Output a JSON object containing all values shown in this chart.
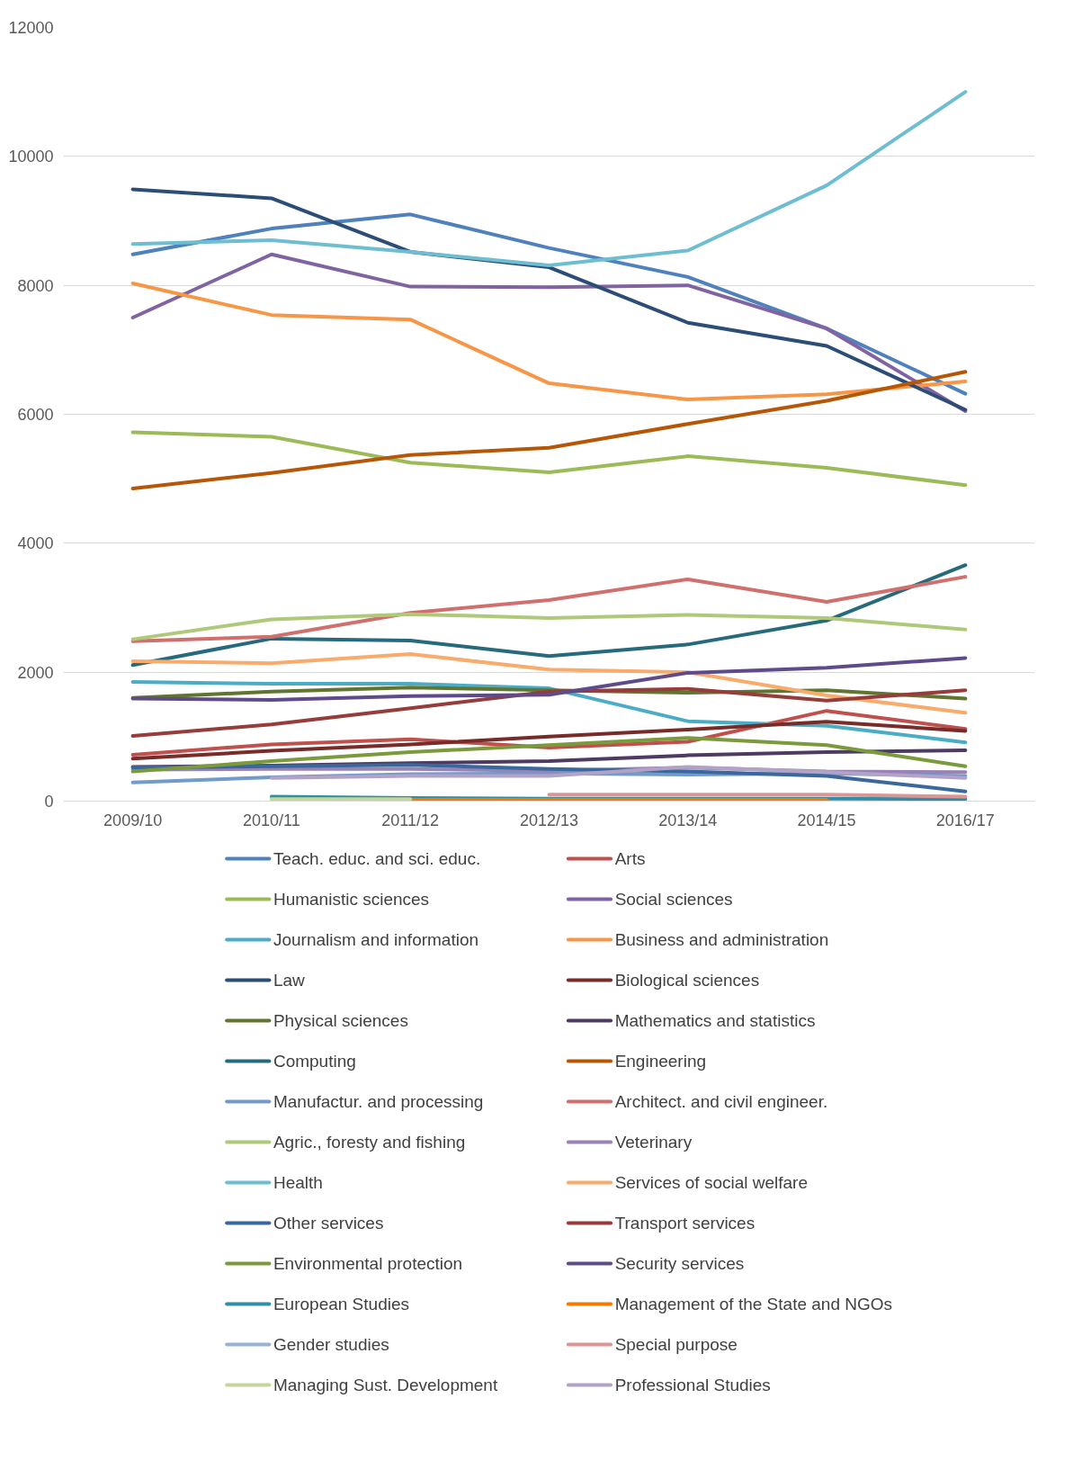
{
  "chart_data": {
    "type": "line",
    "categories": [
      "2009/10",
      "2010/11",
      "2011/12",
      "2012/13",
      "2013/14",
      "2014/15",
      "2016/17"
    ],
    "ylim": [
      0,
      12000
    ],
    "yticks": [
      0,
      2000,
      4000,
      6000,
      8000,
      10000,
      12000
    ],
    "grid": "y",
    "legend": "bottom",
    "marker": "none",
    "line_style": "solid",
    "series": [
      {
        "name": "Teach. educ. and sci. educ.",
        "color": "#4f81bd",
        "values": [
          8480,
          8880,
          9100,
          8580,
          8130,
          7330,
          6320
        ]
      },
      {
        "name": "Arts",
        "color": "#c0504d",
        "values": [
          720,
          880,
          960,
          830,
          920,
          1400,
          1120
        ]
      },
      {
        "name": "Humanistic sciences",
        "color": "#9bbb59",
        "values": [
          5720,
          5650,
          5250,
          5100,
          5350,
          5170,
          4900
        ]
      },
      {
        "name": "Social sciences",
        "color": "#8064a2",
        "values": [
          7500,
          8480,
          7980,
          7970,
          8000,
          7330,
          6050
        ]
      },
      {
        "name": "Journalism and information",
        "color": "#4bacc6",
        "values": [
          1850,
          1820,
          1820,
          1750,
          1240,
          1170,
          910
        ]
      },
      {
        "name": "Business and administration",
        "color": "#f79646",
        "values": [
          8030,
          7540,
          7470,
          6480,
          6230,
          6310,
          6510
        ]
      },
      {
        "name": "Law",
        "color": "#2c4d75",
        "values": [
          9490,
          9350,
          8520,
          8280,
          7420,
          7060,
          6070
        ]
      },
      {
        "name": "Biological sciences",
        "color": "#772c2a",
        "values": [
          660,
          780,
          880,
          1000,
          1110,
          1230,
          1090
        ]
      },
      {
        "name": "Physical sciences",
        "color": "#5f7530",
        "values": [
          1600,
          1700,
          1760,
          1720,
          1680,
          1720,
          1590
        ]
      },
      {
        "name": "Mathematics and statistics",
        "color": "#4d3b62",
        "values": [
          530,
          550,
          590,
          620,
          710,
          760,
          790
        ]
      },
      {
        "name": "Computing",
        "color": "#276a7c",
        "values": [
          2110,
          2520,
          2490,
          2250,
          2430,
          2800,
          3660
        ]
      },
      {
        "name": "Engineering",
        "color": "#b65708",
        "values": [
          4850,
          5090,
          5370,
          5480,
          5850,
          6210,
          6660
        ]
      },
      {
        "name": "Manufactur. and processing",
        "color": "#729aca",
        "values": [
          290,
          370,
          420,
          430,
          410,
          430,
          390
        ]
      },
      {
        "name": "Architect. and civil engineer.",
        "color": "#d0706e",
        "values": [
          2480,
          2550,
          2920,
          3120,
          3440,
          3090,
          3480
        ]
      },
      {
        "name": "Agric., foresty and fishing",
        "color": "#afc97a",
        "values": [
          2510,
          2820,
          2900,
          2840,
          2890,
          2840,
          2660
        ]
      },
      {
        "name": "Veterinary",
        "color": "#9983b5",
        "values": [
          490,
          500,
          500,
          470,
          520,
          460,
          450
        ]
      },
      {
        "name": "Health",
        "color": "#6fbdd1",
        "values": [
          8640,
          8700,
          8520,
          8310,
          8540,
          9550,
          11000
        ]
      },
      {
        "name": "Services of social welfare",
        "color": "#f9ab6b",
        "values": [
          2170,
          2140,
          2280,
          2040,
          2000,
          1640,
          1370
        ]
      },
      {
        "name": "Other services",
        "color": "#3a679c",
        "values": [
          520,
          540,
          560,
          500,
          460,
          390,
          150
        ]
      },
      {
        "name": "Transport services",
        "color": "#963c3a",
        "values": [
          1010,
          1190,
          1440,
          1700,
          1740,
          1560,
          1720
        ]
      },
      {
        "name": "Environmental protection",
        "color": "#7a9a3c",
        "values": [
          460,
          620,
          760,
          870,
          980,
          870,
          540
        ]
      },
      {
        "name": "Security services",
        "color": "#5f4b8b",
        "values": [
          1590,
          1570,
          1630,
          1650,
          1990,
          2070,
          2220
        ]
      },
      {
        "name": "European Studies",
        "color": "#2f8fa6",
        "values": [
          null,
          70,
          50,
          40,
          40,
          40,
          30
        ]
      },
      {
        "name": "Management of the State and NGOs",
        "color": "#f57a00",
        "values": [
          null,
          null,
          20,
          20,
          20,
          20,
          null
        ]
      },
      {
        "name": "Gender studies",
        "color": "#95b3d7",
        "values": [
          null,
          null,
          null,
          null,
          null,
          null,
          null
        ]
      },
      {
        "name": "Special purpose",
        "color": "#d99694",
        "values": [
          null,
          null,
          null,
          100,
          100,
          100,
          70
        ]
      },
      {
        "name": "Managing Sust. Development",
        "color": "#c3d69b",
        "values": [
          null,
          30,
          30,
          null,
          null,
          null,
          null
        ]
      },
      {
        "name": "Professional Studies",
        "color": "#b3a2c7",
        "values": [
          null,
          360,
          390,
          390,
          530,
          450,
          360
        ]
      }
    ]
  }
}
